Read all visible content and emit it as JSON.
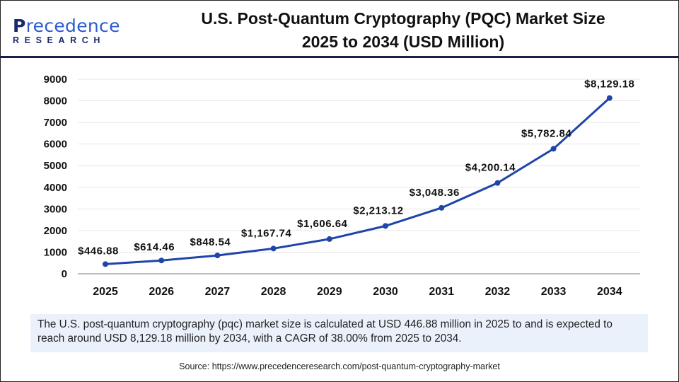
{
  "brand": {
    "logo_line1": "Precedence",
    "logo_line2": "RESEARCH"
  },
  "title_line1": "U.S. Post-Quantum Cryptography (PQC) Market Size",
  "title_line2": "2025 to 2034 (USD Million)",
  "chart_data": {
    "type": "line",
    "title": "U.S. Post-Quantum Cryptography (PQC) Market Size 2025 to 2034 (USD Million)",
    "categories": [
      "2025",
      "2026",
      "2027",
      "2028",
      "2029",
      "2030",
      "2031",
      "2032",
      "2033",
      "2034"
    ],
    "values": [
      446.88,
      614.46,
      848.54,
      1167.74,
      1606.64,
      2213.12,
      3048.36,
      4200.14,
      5782.84,
      8129.18
    ],
    "data_labels": [
      "$446.88",
      "$614.46",
      "$848.54",
      "$1,167.74",
      "$1,606.64",
      "$2,213.12",
      "$3,048.36",
      "$4,200.14",
      "$5,782.84",
      "$8,129.18"
    ],
    "yticks": [
      "0",
      "1000",
      "2000",
      "3000",
      "4000",
      "5000",
      "6000",
      "7000",
      "8000",
      "9000"
    ],
    "ylim": [
      0,
      9000
    ],
    "grid": true,
    "line_color": "#1f45a8"
  },
  "description": "The U.S. post-quantum cryptography (pqc) market size is calculated at USD 446.88 million in 2025 to and is expected to reach around USD 8,129.18 million by 2034, with a CAGR of 38.00% from 2025 to 2034.",
  "source": "Source: https://www.precedenceresearch.com/post-quantum-cryptography-market"
}
